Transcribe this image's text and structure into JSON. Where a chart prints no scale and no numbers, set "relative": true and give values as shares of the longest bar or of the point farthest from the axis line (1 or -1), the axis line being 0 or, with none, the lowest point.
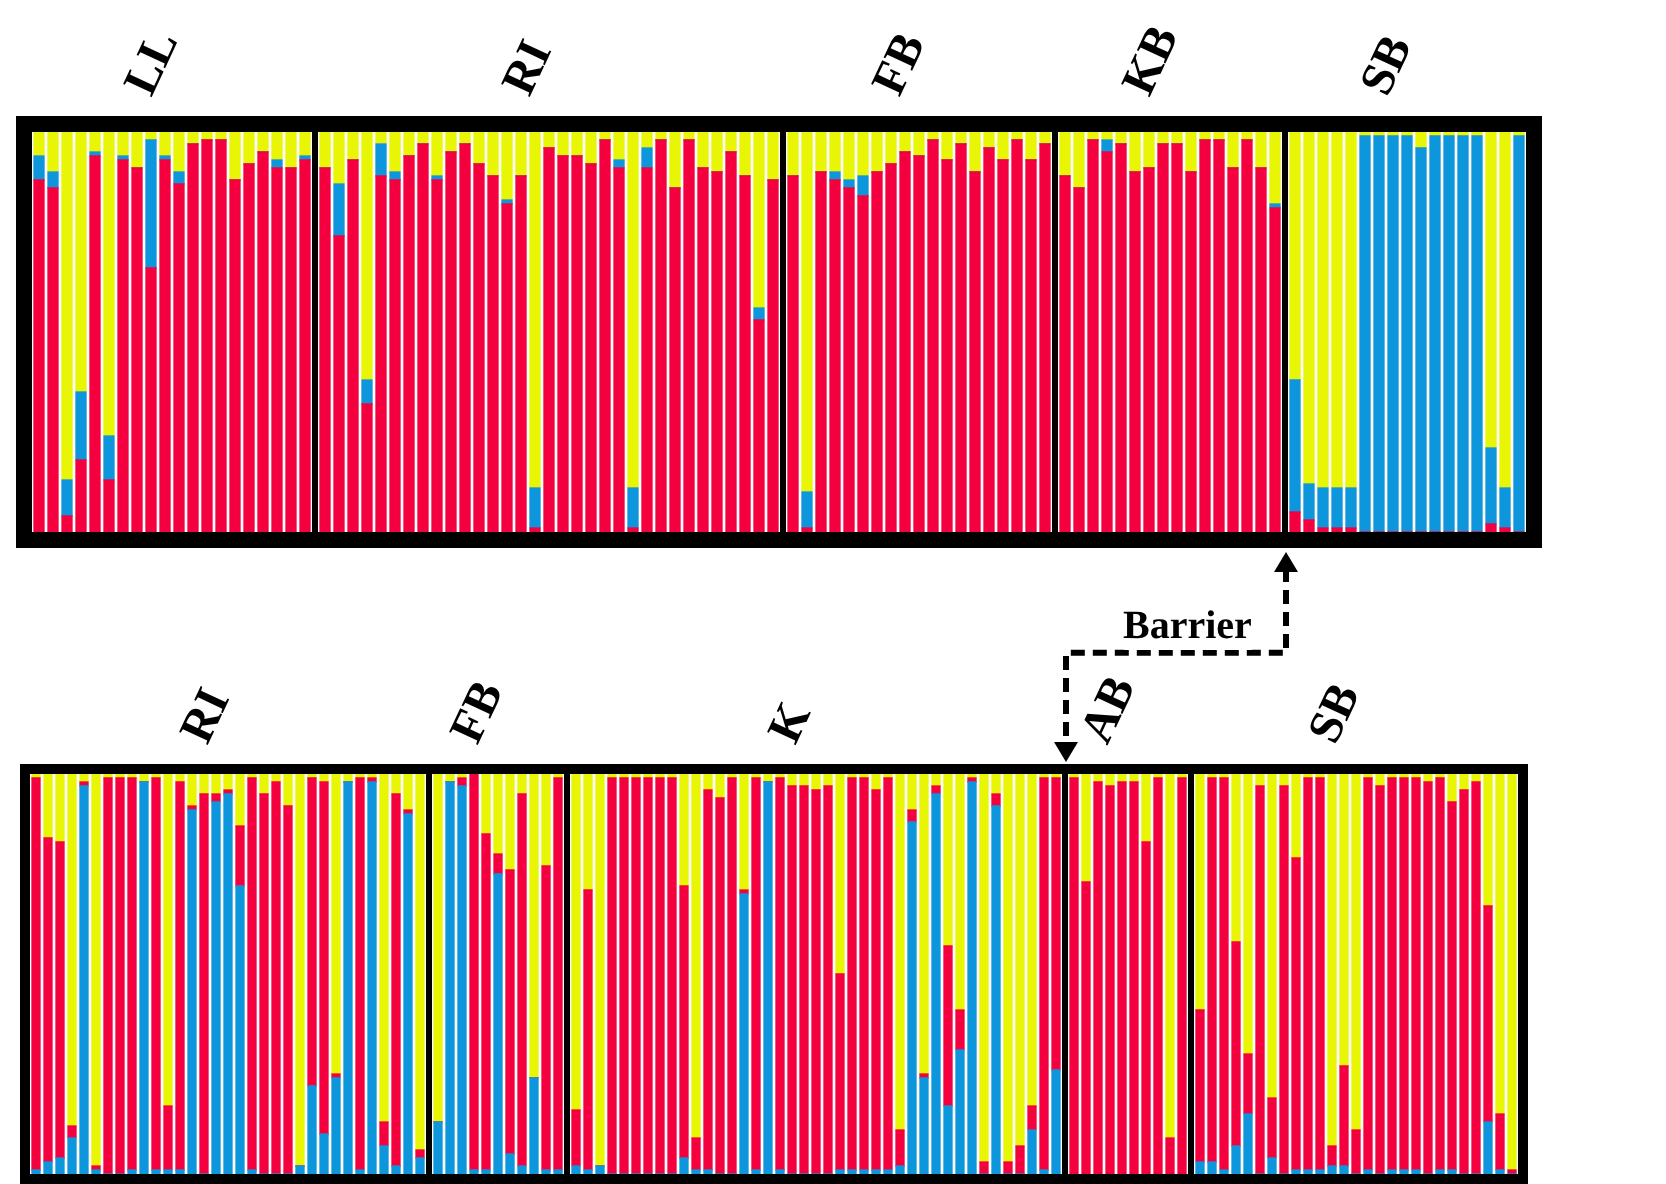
{
  "chart_data": [
    {
      "type": "bar",
      "title": "LL",
      "stacked": true,
      "relative": true,
      "tick_labels": false,
      "categories": [
        null,
        null,
        null,
        null,
        null,
        null,
        null,
        null,
        null,
        null,
        null,
        null,
        null,
        null,
        null,
        null,
        null,
        null,
        null,
        null
      ],
      "series": [
        {
          "color": "#f5003f",
          "values": [
            0.88,
            0.86,
            0.04,
            0.18,
            0.94,
            0.13,
            0.93,
            0.91,
            0.66,
            0.93,
            0.87,
            0.97,
            0.98,
            0.98,
            0.88,
            0.92,
            0.95,
            0.91,
            0.91,
            0.93
          ]
        },
        {
          "color": "#0e96dc",
          "values": [
            0.06,
            0.04,
            0.09,
            0.17,
            0.01,
            0.11,
            0.01,
            0,
            0.32,
            0.01,
            0.03,
            0,
            0,
            0,
            0,
            0,
            0,
            0.02,
            0,
            0.01
          ]
        },
        {
          "color": "#e8f505",
          "values": [
            0.06,
            0.1,
            0.87,
            0.65,
            0.05,
            0.76,
            0.06,
            0.09,
            0.02,
            0.06,
            0.1,
            0.03,
            0.02,
            0.02,
            0.12,
            0.08,
            0.05,
            0.07,
            0.09,
            0.06
          ]
        }
      ]
    },
    {
      "type": "bar",
      "title": "RI",
      "stacked": true,
      "relative": true,
      "tick_labels": false,
      "categories": [
        null,
        null,
        null,
        null,
        null,
        null,
        null,
        null,
        null,
        null,
        null,
        null,
        null,
        null,
        null,
        null,
        null,
        null,
        null,
        null,
        null,
        null,
        null,
        null,
        null,
        null,
        null,
        null,
        null,
        null,
        null,
        null,
        null
      ],
      "series": [
        {
          "color": "#f5003f",
          "values": [
            0.91,
            0.74,
            0.93,
            0.32,
            0.89,
            0.88,
            0.94,
            0.97,
            0.88,
            0.95,
            0.97,
            0.92,
            0.89,
            0.82,
            0.89,
            0.01,
            0.96,
            0.94,
            0.94,
            0.92,
            0.98,
            0.91,
            0.01,
            0.91,
            0.98,
            0.86,
            0.98,
            0.91,
            0.9,
            0.95,
            0.89,
            0.53,
            0.88
          ]
        },
        {
          "color": "#0e96dc",
          "values": [
            0,
            0.13,
            0,
            0.06,
            0.08,
            0.02,
            0,
            0,
            0.01,
            0,
            0,
            0,
            0,
            0.01,
            0,
            0.1,
            0,
            0,
            0,
            0,
            0,
            0.02,
            0.1,
            0.05,
            0,
            0,
            0,
            0,
            0,
            0,
            0,
            0.03,
            0
          ]
        },
        {
          "color": "#e8f505",
          "values": [
            0.09,
            0.13,
            0.07,
            0.62,
            0.03,
            0.1,
            0.06,
            0.03,
            0.11,
            0.05,
            0.03,
            0.08,
            0.11,
            0.17,
            0.11,
            0.89,
            0.04,
            0.06,
            0.06,
            0.08,
            0.02,
            0.07,
            0.89,
            0.04,
            0.02,
            0.14,
            0.02,
            0.09,
            0.1,
            0.05,
            0.11,
            0.44,
            0.12
          ]
        }
      ]
    },
    {
      "type": "bar",
      "title": "FB",
      "stacked": true,
      "relative": true,
      "tick_labels": false,
      "categories": [
        null,
        null,
        null,
        null,
        null,
        null,
        null,
        null,
        null,
        null,
        null,
        null,
        null,
        null,
        null,
        null,
        null,
        null,
        null
      ],
      "series": [
        {
          "color": "#f5003f",
          "values": [
            0.89,
            0.01,
            0.9,
            0.88,
            0.86,
            0.84,
            0.9,
            0.92,
            0.95,
            0.94,
            0.98,
            0.93,
            0.97,
            0.9,
            0.96,
            0.93,
            0.98,
            0.93,
            0.97
          ]
        },
        {
          "color": "#0e96dc",
          "values": [
            0,
            0.09,
            0,
            0.02,
            0.02,
            0.05,
            0,
            0,
            0,
            0,
            0,
            0,
            0,
            0,
            0,
            0,
            0,
            0,
            0
          ]
        },
        {
          "color": "#e8f505",
          "values": [
            0.11,
            0.9,
            0.1,
            0.1,
            0.12,
            0.11,
            0.1,
            0.08,
            0.05,
            0.06,
            0.02,
            0.07,
            0.03,
            0.1,
            0.04,
            0.07,
            0.02,
            0.07,
            0.03
          ]
        }
      ]
    },
    {
      "type": "bar",
      "title": "KB",
      "stacked": true,
      "relative": true,
      "tick_labels": false,
      "categories": [
        null,
        null,
        null,
        null,
        null,
        null,
        null,
        null,
        null,
        null,
        null,
        null,
        null,
        null,
        null,
        null
      ],
      "series": [
        {
          "color": "#f5003f",
          "values": [
            0.89,
            0.86,
            0.98,
            0.95,
            0.97,
            0.9,
            0.91,
            0.97,
            0.97,
            0.9,
            0.98,
            0.98,
            0.91,
            0.98,
            0.91,
            0.81
          ]
        },
        {
          "color": "#0e96dc",
          "values": [
            0,
            0,
            0,
            0.03,
            0,
            0,
            0,
            0,
            0,
            0,
            0,
            0,
            0,
            0,
            0,
            0.01
          ]
        },
        {
          "color": "#e8f505",
          "values": [
            0.11,
            0.14,
            0.02,
            0.02,
            0.03,
            0.1,
            0.09,
            0.03,
            0.03,
            0.1,
            0.02,
            0.02,
            0.09,
            0.02,
            0.09,
            0.18
          ]
        }
      ]
    },
    {
      "type": "bar",
      "title": "SB",
      "stacked": true,
      "relative": true,
      "tick_labels": false,
      "categories": [
        null,
        null,
        null,
        null,
        null,
        null,
        null,
        null,
        null,
        null,
        null,
        null,
        null,
        null,
        null,
        null,
        null
      ],
      "series": [
        {
          "color": "#f5003f",
          "values": [
            0.05,
            0.03,
            0.01,
            0.01,
            0.01,
            0,
            0,
            0,
            0,
            0,
            0,
            0,
            0,
            0,
            0.02,
            0.01,
            0
          ]
        },
        {
          "color": "#0e96dc",
          "values": [
            0.33,
            0.09,
            0.1,
            0.1,
            0.1,
            0.99,
            0.99,
            0.99,
            0.99,
            0.96,
            0.99,
            0.99,
            0.99,
            0.99,
            0.19,
            0.1,
            0.99
          ]
        },
        {
          "color": "#e8f505",
          "values": [
            0.62,
            0.88,
            0.89,
            0.89,
            0.89,
            0.01,
            0.01,
            0.01,
            0.01,
            0.04,
            0.01,
            0.01,
            0.01,
            0.01,
            0.79,
            0.89,
            0.01
          ]
        }
      ]
    },
    {
      "type": "bar",
      "title": "RI",
      "stacked": true,
      "relative": true,
      "tick_labels": false,
      "categories": [
        null,
        null,
        null,
        null,
        null,
        null,
        null,
        null,
        null,
        null,
        null,
        null,
        null,
        null,
        null,
        null,
        null,
        null,
        null,
        null,
        null,
        null,
        null,
        null,
        null,
        null,
        null,
        null,
        null,
        null,
        null,
        null,
        null
      ],
      "series": [
        {
          "color": "#0e96dc",
          "values": [
            0.01,
            0.03,
            0.04,
            0.09,
            0.97,
            0.01,
            0,
            0,
            0.01,
            0.98,
            0.01,
            0.01,
            0.01,
            0.91,
            0,
            0.93,
            0.95,
            0.72,
            0.01,
            0,
            0,
            0,
            0.02,
            0.22,
            0.1,
            0.24,
            0.98,
            0.01,
            0.98,
            0.07,
            0.02,
            0.9,
            0.04
          ]
        },
        {
          "color": "#f5003f",
          "values": [
            0.98,
            0.81,
            0.79,
            0.03,
            0.01,
            0.01,
            0.99,
            0.99,
            0.98,
            0,
            0.98,
            0.16,
            0.97,
            0.01,
            0.95,
            0.02,
            0.01,
            0.15,
            0.98,
            0.95,
            0.98,
            0.92,
            0,
            0.77,
            0.88,
            0.01,
            0,
            0.98,
            0.01,
            0.06,
            0.93,
            0.01,
            0.02
          ]
        },
        {
          "color": "#e8f505",
          "values": [
            0.01,
            0.16,
            0.17,
            0.88,
            0.02,
            0.98,
            0.01,
            0.01,
            0.01,
            0.02,
            0.01,
            0.83,
            0.02,
            0.08,
            0.05,
            0.05,
            0.04,
            0.13,
            0.01,
            0.05,
            0.02,
            0.08,
            0.98,
            0.01,
            0.02,
            0.75,
            0.02,
            0.01,
            0.01,
            0.87,
            0.05,
            0.09,
            0.94
          ]
        }
      ]
    },
    {
      "type": "bar",
      "title": "FB",
      "stacked": true,
      "relative": true,
      "tick_labels": false,
      "categories": [
        null,
        null,
        null,
        null,
        null,
        null,
        null,
        null,
        null,
        null,
        null
      ],
      "series": [
        {
          "color": "#0e96dc",
          "values": [
            0.13,
            0.98,
            0.97,
            0.01,
            0.01,
            0.75,
            0.05,
            0.02,
            0.24,
            0.01,
            0.01
          ]
        },
        {
          "color": "#f5003f",
          "values": [
            0,
            0,
            0.02,
            0.99,
            0.84,
            0.05,
            0.71,
            0.93,
            0,
            0.76,
            0.98
          ]
        },
        {
          "color": "#e8f505",
          "values": [
            0.87,
            0.02,
            0.01,
            0,
            0.15,
            0.2,
            0.24,
            0.05,
            0.76,
            0.23,
            0.01
          ]
        }
      ]
    },
    {
      "type": "bar",
      "title": "K",
      "stacked": true,
      "relative": true,
      "tick_labels": false,
      "categories": [
        null,
        null,
        null,
        null,
        null,
        null,
        null,
        null,
        null,
        null,
        null,
        null,
        null,
        null,
        null,
        null,
        null,
        null,
        null,
        null,
        null,
        null,
        null,
        null,
        null,
        null,
        null,
        null,
        null,
        null,
        null,
        null,
        null,
        null,
        null,
        null,
        null,
        null,
        null,
        null,
        null
      ],
      "series": [
        {
          "color": "#0e96dc",
          "values": [
            0.02,
            0.01,
            0.02,
            0,
            0,
            0,
            0,
            0,
            0,
            0.04,
            0.01,
            0.01,
            0,
            0,
            0.7,
            0.01,
            0.98,
            0.01,
            0,
            0,
            0,
            0,
            0.01,
            0.01,
            0.01,
            0.01,
            0.01,
            0.02,
            0.88,
            0.24,
            0.95,
            0.17,
            0.31,
            0.98,
            0,
            0.92,
            0,
            0,
            0.11,
            0.01,
            0.26
          ]
        },
        {
          "color": "#f5003f",
          "values": [
            0.14,
            0.7,
            0,
            0.99,
            0.99,
            0.99,
            0.99,
            0.99,
            0.99,
            0.68,
            0.08,
            0.95,
            0.94,
            0.99,
            0.01,
            0.98,
            0,
            0.98,
            0.97,
            0.97,
            0.96,
            0.97,
            0.49,
            0.98,
            0.98,
            0.95,
            0.98,
            0.09,
            0.03,
            0.01,
            0.02,
            0.4,
            0.1,
            0.01,
            0.03,
            0.03,
            0.03,
            0.07,
            0.06,
            0.98,
            0.73
          ]
        },
        {
          "color": "#e8f505",
          "values": [
            0.84,
            0.29,
            0.98,
            0.01,
            0.01,
            0.01,
            0.01,
            0.01,
            0.01,
            0.28,
            0.91,
            0.04,
            0.06,
            0.01,
            0.29,
            0.01,
            0.02,
            0.01,
            0.03,
            0.03,
            0.04,
            0.03,
            0.5,
            0.01,
            0.01,
            0.04,
            0.01,
            0.89,
            0.09,
            0.75,
            0.03,
            0.43,
            0.59,
            0.01,
            0.97,
            0.05,
            0.97,
            0.93,
            0.83,
            0.01,
            0.01
          ]
        }
      ]
    },
    {
      "type": "bar",
      "title": "AB",
      "stacked": true,
      "relative": true,
      "tick_labels": false,
      "annotations": [
        "Barrier"
      ],
      "categories": [
        null,
        null,
        null,
        null,
        null,
        null,
        null,
        null,
        null,
        null
      ],
      "series": [
        {
          "color": "#f5003f",
          "values": [
            0.99,
            0.73,
            0.98,
            0.97,
            0.98,
            0.98,
            0.83,
            0.99,
            0.09,
            0.99
          ]
        },
        {
          "color": "#e8f505",
          "values": [
            0.01,
            0.27,
            0.02,
            0.03,
            0.02,
            0.02,
            0.17,
            0.01,
            0.91,
            0.01
          ]
        }
      ]
    },
    {
      "type": "bar",
      "title": "SB",
      "stacked": true,
      "relative": true,
      "tick_labels": false,
      "categories": [
        null,
        null,
        null,
        null,
        null,
        null,
        null,
        null,
        null,
        null,
        null,
        null,
        null,
        null,
        null,
        null,
        null,
        null,
        null,
        null,
        null,
        null,
        null,
        null,
        null,
        null,
        null
      ],
      "series": [
        {
          "color": "#0e96dc",
          "values": [
            0.03,
            0.03,
            0.01,
            0.07,
            0.15,
            0,
            0.04,
            0,
            0.01,
            0.01,
            0.01,
            0.02,
            0.02,
            0,
            0.01,
            0,
            0.01,
            0.01,
            0.01,
            0,
            0.01,
            0.01,
            0,
            0,
            0.13,
            0.01,
            0
          ]
        },
        {
          "color": "#f5003f",
          "values": [
            0.38,
            0.96,
            0.98,
            0.51,
            0.15,
            0.97,
            0.15,
            0.97,
            0.78,
            0.98,
            0.98,
            0.05,
            0.25,
            0.11,
            0.98,
            0.97,
            0.98,
            0.98,
            0.98,
            0.98,
            0.98,
            0.92,
            0.96,
            0.98,
            0.54,
            0.14,
            0.01
          ]
        },
        {
          "color": "#e8f505",
          "values": [
            0.59,
            0.01,
            0.01,
            0.42,
            0.7,
            0.03,
            0.81,
            0.03,
            0.21,
            0.01,
            0.01,
            0.93,
            0.73,
            0.89,
            0.01,
            0.03,
            0.01,
            0.01,
            0.01,
            0.02,
            0.01,
            0.07,
            0.04,
            0.02,
            0.33,
            0.85,
            0.99
          ]
        }
      ]
    }
  ]
}
